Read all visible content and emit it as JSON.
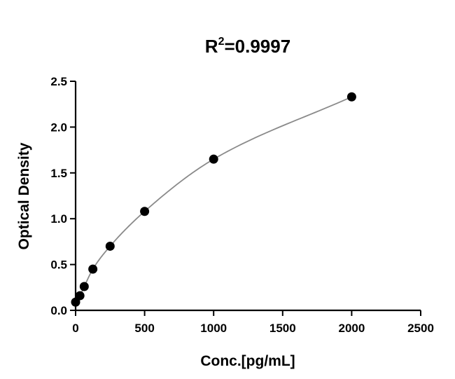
{
  "chart_data": {
    "type": "scatter",
    "title": "R²=0.9997",
    "title_main": "R",
    "title_sup": "2",
    "title_rest": "=0.9997",
    "xlabel": "Conc.[pg/mL]",
    "ylabel": "Optical Density",
    "xlim": [
      0,
      2500
    ],
    "ylim": [
      0,
      2.5
    ],
    "xticks": [
      0,
      500,
      1000,
      1500,
      2000,
      2500
    ],
    "xtick_labels": [
      "0",
      "500",
      "1000",
      "1500",
      "2000",
      "2500"
    ],
    "yticks": [
      0,
      0.5,
      1.0,
      1.5,
      2.0,
      2.5
    ],
    "ytick_labels": [
      "0.0",
      "0.5",
      "1.0",
      "1.5",
      "2.0",
      "2.5"
    ],
    "grid": false,
    "x": [
      0,
      31.25,
      62.5,
      125,
      250,
      500,
      1000,
      2000
    ],
    "y": [
      0.09,
      0.16,
      0.26,
      0.45,
      0.7,
      1.08,
      1.65,
      2.33
    ],
    "fit_line": true,
    "colors": {
      "points": "#000000",
      "fit": "#8a8a8a",
      "axes": "#000000"
    }
  }
}
